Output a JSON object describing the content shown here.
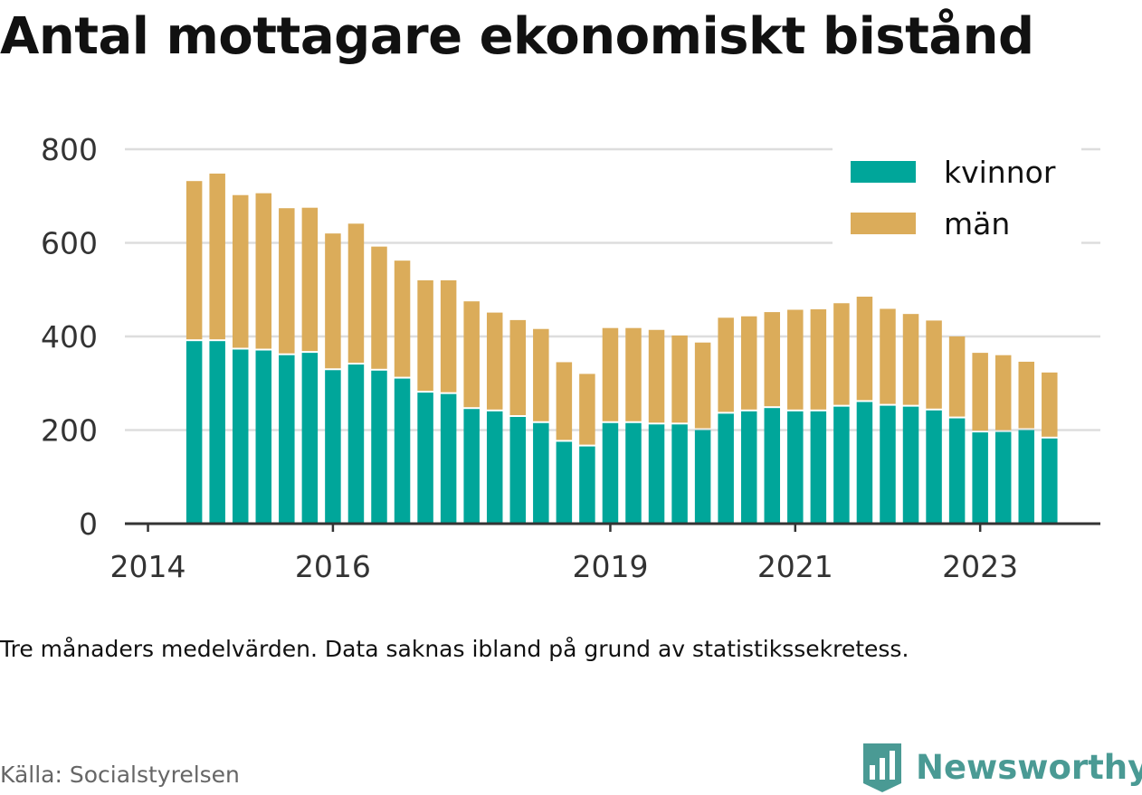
{
  "title": "Antal mottagare ekonomiskt bistånd",
  "note": "Tre månaders medelvärden. Data saknas ibland på grund av statistikssekretess.",
  "source": "Källa: Socialstyrelsen",
  "brand": {
    "name": "Newsworthy",
    "color": "#4a9a94"
  },
  "chart_data": {
    "type": "bar",
    "stacked": true,
    "title": "Antal mottagare ekonomiskt bistånd",
    "xlabel": "",
    "ylabel": "",
    "ylim": [
      0,
      800
    ],
    "yticks": [
      0,
      200,
      400,
      600,
      800
    ],
    "grid": true,
    "legend_position": "top-right",
    "xtick_labels": [
      "2014",
      "2016",
      "2019",
      "2021",
      "2023"
    ],
    "categories": [
      "2014-07",
      "2014-10",
      "2015-01",
      "2015-04",
      "2015-07",
      "2015-10",
      "2016-01",
      "2016-04",
      "2016-07",
      "2016-10",
      "2017-01",
      "2017-04",
      "2017-07",
      "2017-10",
      "2018-01",
      "2018-04",
      "2018-07",
      "2018-10",
      "2019-01",
      "2019-04",
      "2019-07",
      "2019-10",
      "2020-01",
      "2020-04",
      "2020-07",
      "2020-10",
      "2021-01",
      "2021-04",
      "2021-07",
      "2021-10",
      "2022-01",
      "2022-04",
      "2022-07",
      "2022-10",
      "2023-01",
      "2023-04",
      "2023-07",
      "2023-10"
    ],
    "series": [
      {
        "name": "kvinnor",
        "color": "#00a69a",
        "values": [
          390,
          390,
          372,
          370,
          360,
          365,
          328,
          340,
          327,
          310,
          280,
          277,
          245,
          240,
          228,
          215,
          175,
          165,
          215,
          215,
          212,
          212,
          200,
          235,
          240,
          247,
          240,
          240,
          250,
          260,
          252,
          250,
          242,
          225,
          195,
          196,
          200,
          182
        ]
      },
      {
        "name": "män",
        "color": "#dbac5a",
        "values": [
          342,
          358,
          330,
          336,
          314,
          310,
          292,
          301,
          265,
          252,
          240,
          243,
          230,
          211,
          207,
          201,
          170,
          155,
          203,
          203,
          202,
          190,
          187,
          205,
          203,
          205,
          217,
          218,
          221,
          225,
          207,
          198,
          192,
          175,
          170,
          164,
          146,
          141
        ]
      }
    ]
  }
}
